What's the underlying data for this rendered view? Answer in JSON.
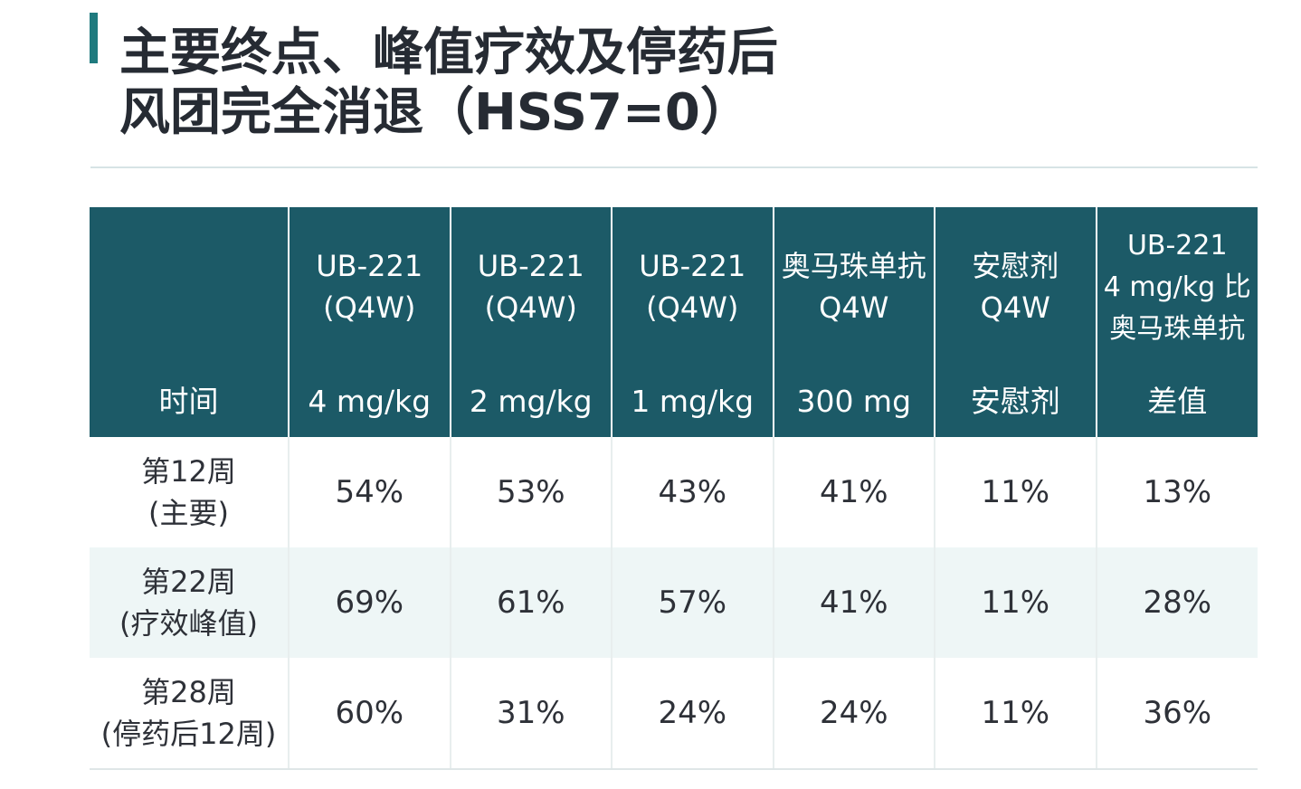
{
  "title": {
    "line1": "主要终点、峰值疗效及停药后",
    "line2": "风团完全消退（HSS7=0）"
  },
  "table": {
    "header": {
      "time": "时间",
      "columns": [
        {
          "top": [
            "UB-221",
            "(Q4W)"
          ],
          "bottom": "4 mg/kg"
        },
        {
          "top": [
            "UB-221",
            "(Q4W)"
          ],
          "bottom": "2 mg/kg"
        },
        {
          "top": [
            "UB-221",
            "(Q4W)"
          ],
          "bottom": "1 mg/kg"
        },
        {
          "top": [
            "奥马珠单抗",
            "Q4W"
          ],
          "bottom": "300 mg"
        },
        {
          "top": [
            "安慰剂",
            "Q4W"
          ],
          "bottom": "安慰剂"
        },
        {
          "top": [
            "UB-221",
            "4 mg/kg 比",
            "奥马珠单抗"
          ],
          "bottom": "差值"
        }
      ]
    },
    "rows": [
      {
        "time": [
          "第12周",
          "(主要)"
        ],
        "values": [
          "54%",
          "53%",
          "43%",
          "41%",
          "11%",
          "13%"
        ]
      },
      {
        "time": [
          "第22周",
          "(疗效峰值)"
        ],
        "values": [
          "69%",
          "61%",
          "57%",
          "41%",
          "11%",
          "28%"
        ]
      },
      {
        "time": [
          "第28周",
          "(停药后12周)"
        ],
        "values": [
          "60%",
          "31%",
          "24%",
          "24%",
          "11%",
          "36%"
        ]
      }
    ]
  },
  "colors": {
    "accent": "#1f7a7e",
    "header_bg": "#1c5a67",
    "row_tint": "#eef6f6",
    "title_text": "#262b33"
  }
}
